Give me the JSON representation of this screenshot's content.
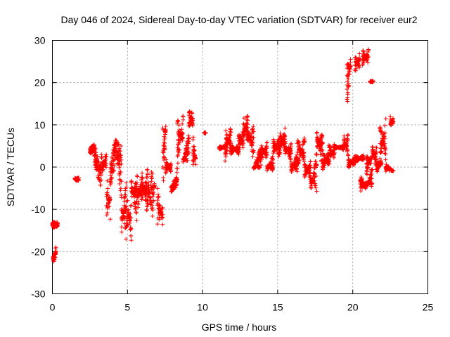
{
  "chart_data": {
    "type": "scatter",
    "title": "Day 046 of 2024, Sidereal Day-to-day VTEC variation (SDTVAR) for receiver eur2",
    "xlabel": "GPS time / hours",
    "ylabel": "SDTVAR / TECUs",
    "xlim": [
      0,
      25
    ],
    "ylim": [
      -30,
      30
    ],
    "xticks": [
      0,
      5,
      10,
      15,
      20,
      25
    ],
    "yticks": [
      -30,
      -20,
      -10,
      0,
      10,
      20,
      30
    ],
    "grid": true,
    "marker": "+",
    "color": "#ff0000",
    "segments": [
      {
        "x": [
          0.0,
          0.35
        ],
        "y": [
          [
            -13,
            -14.5
          ],
          [
            -13,
            -14
          ]
        ]
      },
      {
        "x": [
          0.05,
          0.25
        ],
        "y": [
          [
            -21,
            -23
          ],
          [
            -18.5,
            -20.5
          ]
        ]
      },
      {
        "x": [
          1.5,
          1.75
        ],
        "y": [
          [
            -2.5,
            -3.2
          ],
          [
            -2.5,
            -3.2
          ]
        ]
      },
      {
        "x": [
          2.5,
          2.8
        ],
        "y": [
          [
            3,
            4.5
          ],
          [
            4,
            5.5
          ]
        ]
      },
      {
        "x": [
          2.8,
          3.2
        ],
        "y": [
          [
            5.5,
            0
          ],
          [
            0,
            -4.5
          ]
        ]
      },
      {
        "x": [
          3.2,
          3.6
        ],
        "y": [
          [
            -4.5,
            4.5
          ],
          [
            4.5,
            -1.0
          ]
        ]
      },
      {
        "x": [
          3.6,
          3.85
        ],
        "y": [
          [
            -1.0,
            -12.5
          ],
          [
            -12.5,
            -5.0
          ]
        ]
      },
      {
        "x": [
          3.85,
          4.2
        ],
        "y": [
          [
            -5.0,
            1.0
          ],
          [
            1.0,
            6.5
          ]
        ]
      },
      {
        "x": [
          4.2,
          4.6
        ],
        "y": [
          [
            6.5,
            5.0
          ],
          [
            5.0,
            -8.0
          ]
        ]
      },
      {
        "x": [
          4.6,
          4.9
        ],
        "y": [
          [
            -8.0,
            -16.0
          ],
          [
            -16.0,
            -3.0
          ]
        ]
      },
      {
        "x": [
          4.9,
          5.25
        ],
        "y": [
          [
            -3.0,
            -17.5
          ],
          [
            -17.5,
            -8.0
          ]
        ]
      },
      {
        "x": [
          5.25,
          5.6
        ],
        "y": [
          [
            -8.0,
            -2.0
          ],
          [
            -2.0,
            -13.0
          ]
        ]
      },
      {
        "x": [
          5.6,
          5.95
        ],
        "y": [
          [
            -13.0,
            -1.0
          ],
          [
            -1.0,
            -9.0
          ]
        ]
      },
      {
        "x": [
          5.95,
          6.3
        ],
        "y": [
          [
            -9.0,
            -0.5
          ],
          [
            -0.5,
            -11.5
          ]
        ]
      },
      {
        "x": [
          6.3,
          6.65
        ],
        "y": [
          [
            -11.5,
            0.5
          ],
          [
            0.5,
            -14.0
          ]
        ]
      },
      {
        "x": [
          6.65,
          6.8
        ],
        "y": [
          [
            -14.0,
            -3.0
          ],
          [
            -3.0,
            -5.0
          ]
        ]
      },
      {
        "x": [
          7.0,
          7.35
        ],
        "y": [
          [
            -5.0,
            -14.0
          ],
          [
            -14.0,
            -9.0
          ]
        ]
      },
      {
        "x": [
          7.35,
          7.55
        ],
        "y": [
          [
            -9.0,
            10.0
          ],
          [
            10.0,
            8.5
          ]
        ]
      },
      {
        "x": [
          7.55,
          7.9
        ],
        "y": [
          [
            2.0,
            -1.5
          ],
          [
            -1.5,
            1.0
          ]
        ]
      },
      {
        "x": [
          7.9,
          8.3
        ],
        "y": [
          [
            -6.0,
            -4.5
          ],
          [
            -4.5,
            -2.0
          ]
        ]
      },
      {
        "x": [
          8.3,
          8.7
        ],
        "y": [
          [
            -2.0,
            12.5
          ],
          [
            12.5,
            5.0
          ]
        ]
      },
      {
        "x": [
          8.7,
          9.1
        ],
        "y": [
          [
            2.0,
            1.0
          ],
          [
            1.0,
            8.5
          ]
        ]
      },
      {
        "x": [
          9.1,
          9.35
        ],
        "y": [
          [
            8.5,
            14.5
          ],
          [
            14.5,
            9.0
          ]
        ]
      },
      {
        "x": [
          9.35,
          9.55
        ],
        "y": [
          [
            9.0,
            0.0
          ],
          [
            0.0,
            3.0
          ]
        ]
      },
      {
        "x": [
          10.1,
          10.2
        ],
        "y": [
          [
            8.0,
            8.2
          ],
          [
            8.2,
            8.0
          ]
        ]
      },
      {
        "x": [
          11.1,
          11.5
        ],
        "y": [
          [
            4.0,
            5.0
          ],
          [
            5.0,
            4.5
          ]
        ]
      },
      {
        "x": [
          11.5,
          11.9
        ],
        "y": [
          [
            1.0,
            10.5
          ],
          [
            10.5,
            3.0
          ]
        ]
      },
      {
        "x": [
          11.9,
          12.4
        ],
        "y": [
          [
            3.0,
            5.5
          ],
          [
            5.5,
            3.0
          ]
        ]
      },
      {
        "x": [
          12.4,
          12.7
        ],
        "y": [
          [
            3.0,
            9.0
          ],
          [
            9.0,
            4.5
          ]
        ]
      },
      {
        "x": [
          12.7,
          13.0
        ],
        "y": [
          [
            4.5,
            13.0
          ],
          [
            13.0,
            5.5
          ]
        ]
      },
      {
        "x": [
          13.0,
          13.4
        ],
        "y": [
          [
            5.5,
            10.0
          ],
          [
            10.0,
            1.0
          ]
        ]
      },
      {
        "x": [
          13.4,
          13.9
        ],
        "y": [
          [
            0.0,
            -0.5
          ],
          [
            -0.5,
            5.5
          ]
        ]
      },
      {
        "x": [
          13.9,
          14.3
        ],
        "y": [
          [
            5.5,
            1.5
          ],
          [
            1.5,
            6.0
          ]
        ]
      },
      {
        "x": [
          14.3,
          14.7
        ],
        "y": [
          [
            0.5,
            -1.0
          ],
          [
            -1.0,
            3.0
          ]
        ]
      },
      {
        "x": [
          14.7,
          15.1
        ],
        "y": [
          [
            3.0,
            7.0
          ],
          [
            7.0,
            2.0
          ]
        ]
      },
      {
        "x": [
          15.1,
          15.5
        ],
        "y": [
          [
            2.0,
            9.5
          ],
          [
            9.5,
            3.0
          ]
        ]
      },
      {
        "x": [
          15.5,
          15.9
        ],
        "y": [
          [
            3.0,
            6.0
          ],
          [
            6.0,
            1.0
          ]
        ]
      },
      {
        "x": [
          15.9,
          16.3
        ],
        "y": [
          [
            1.0,
            -1.5
          ],
          [
            -1.5,
            3.5
          ]
        ]
      },
      {
        "x": [
          16.3,
          16.8
        ],
        "y": [
          [
            -1.0,
            7.5
          ],
          [
            7.5,
            0.5
          ]
        ]
      },
      {
        "x": [
          16.8,
          17.2
        ],
        "y": [
          [
            1.0,
            -3.0
          ],
          [
            -3.0,
            2.0
          ]
        ]
      },
      {
        "x": [
          17.2,
          17.6
        ],
        "y": [
          [
            -2.0,
            -6.0
          ],
          [
            -6.0,
            4.0
          ]
        ]
      },
      {
        "x": [
          17.6,
          18.0
        ],
        "y": [
          [
            4.0,
            9.0
          ],
          [
            9.0,
            -1.0
          ]
        ]
      },
      {
        "x": [
          18.0,
          18.4
        ],
        "y": [
          [
            -1.0,
            4.0
          ],
          [
            4.0,
            0.0
          ]
        ]
      },
      {
        "x": [
          18.4,
          18.8
        ],
        "y": [
          [
            0.0,
            6.0
          ],
          [
            6.0,
            1.5
          ]
        ]
      },
      {
        "x": [
          18.8,
          19.4
        ],
        "y": [
          [
            4.5,
            5.0
          ],
          [
            5.0,
            4.0
          ]
        ]
      },
      {
        "x": [
          19.4,
          19.7
        ],
        "y": [
          [
            3.5,
            8.0
          ],
          [
            8.0,
            2.0
          ]
        ]
      },
      {
        "x": [
          19.6,
          19.85
        ],
        "y": [
          [
            12.5,
            25.5
          ],
          [
            25.5,
            23.5
          ]
        ]
      },
      {
        "x": [
          19.7,
          20.1
        ],
        "y": [
          [
            -0.5,
            2.5
          ],
          [
            2.5,
            0.0
          ]
        ]
      },
      {
        "x": [
          20.15,
          20.45
        ],
        "y": [
          [
            22.0,
            27.0
          ],
          [
            27.0,
            22.5
          ]
        ]
      },
      {
        "x": [
          20.1,
          20.7
        ],
        "y": [
          [
            0.5,
            3.0
          ],
          [
            3.0,
            1.5
          ]
        ]
      },
      {
        "x": [
          20.65,
          21.05
        ],
        "y": [
          [
            24.0,
            28.0
          ],
          [
            28.0,
            24.0
          ]
        ]
      },
      {
        "x": [
          20.5,
          20.9
        ],
        "y": [
          [
            -1.5,
            -6.0
          ],
          [
            -6.0,
            -3.0
          ]
        ]
      },
      {
        "x": [
          20.9,
          21.2
        ],
        "y": [
          [
            -3.0,
            3.5
          ],
          [
            3.5,
            0.0
          ]
        ]
      },
      {
        "x": [
          21.0,
          21.3
        ],
        "y": [
          [
            -3.0,
            -5.0
          ],
          [
            -5.0,
            1.0
          ]
        ]
      },
      {
        "x": [
          21.15,
          21.35
        ],
        "y": [
          [
            20.0,
            20.5
          ],
          [
            20.5,
            20.0
          ]
        ]
      },
      {
        "x": [
          21.3,
          21.6
        ],
        "y": [
          [
            1.0,
            5.5
          ],
          [
            5.5,
            -1.5
          ]
        ]
      },
      {
        "x": [
          21.6,
          21.9
        ],
        "y": [
          [
            -1.5,
            2.0
          ],
          [
            2.0,
            0.0
          ]
        ]
      },
      {
        "x": [
          21.8,
          22.2
        ],
        "y": [
          [
            0.0,
            12.0
          ],
          [
            12.0,
            1.0
          ]
        ]
      },
      {
        "x": [
          22.2,
          22.45
        ],
        "y": [
          [
            1.0,
            -1.0
          ],
          [
            -1.0,
            0.5
          ]
        ]
      },
      {
        "x": [
          22.5,
          22.7
        ],
        "y": [
          [
            9.0,
            12.0
          ],
          [
            12.0,
            9.5
          ]
        ]
      },
      {
        "x": [
          22.55,
          22.7
        ],
        "y": [
          [
            -0.5,
            -1.0
          ],
          [
            -1.0,
            -0.8
          ]
        ]
      }
    ]
  }
}
